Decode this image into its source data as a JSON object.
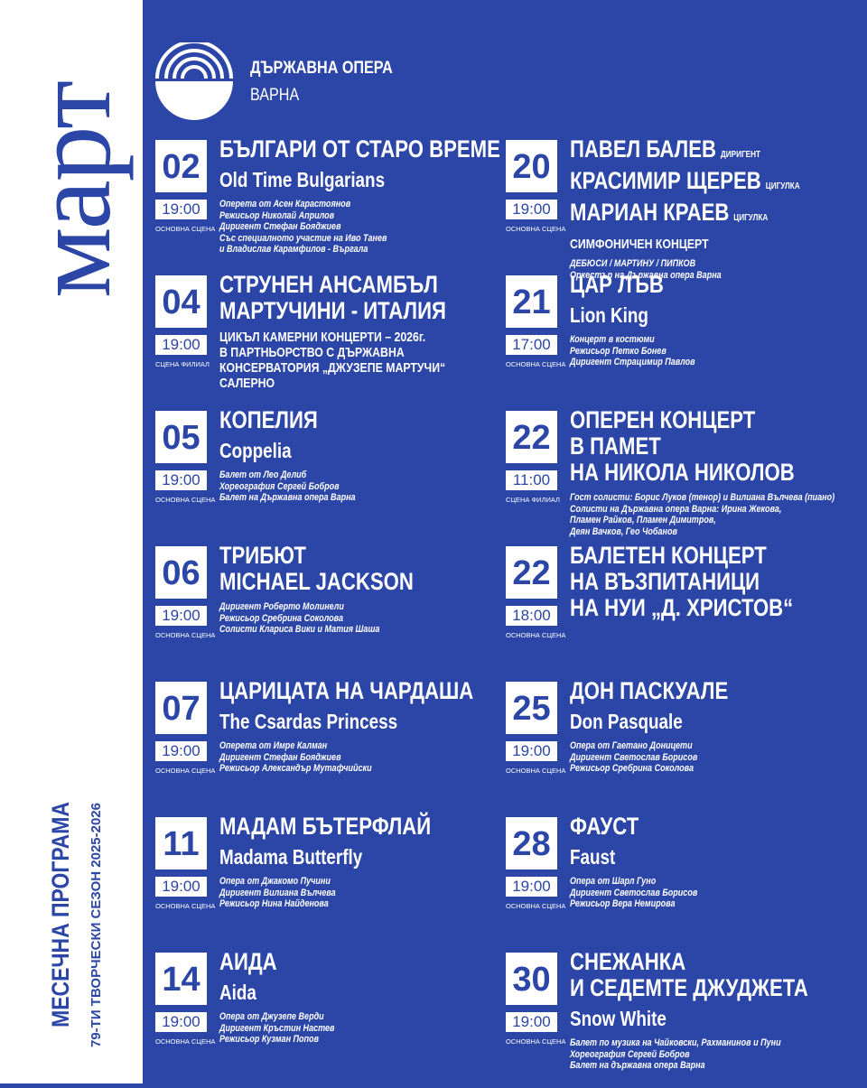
{
  "header": {
    "month": "март",
    "logo_line1": "ДЪРЖАВНА ОПЕРА",
    "logo_line2": "ВАРНА",
    "program": "МЕСЕЧНА ПРОГРАМА",
    "season": "79-ТИ ТВОРЧЕСКИ СЕЗОН 2025-2026"
  },
  "columns": [
    [
      {
        "day": "02",
        "time": "19:00",
        "venue": "ОСНОВНА СЦЕНА",
        "title": [
          "БЪЛГАРИ ОТ СТАРО ВРЕМЕ"
        ],
        "subtitle": "Old Time Bulgarians",
        "details": [
          "Оперета от Асен Карастоянов",
          "Режисьор Николай Априлов",
          "Диригент Стефан Бояджиев",
          "Със специалното участие на Иво Танев",
          "и Владислав Карамфилов - Въргала"
        ]
      },
      {
        "day": "04",
        "time": "19:00",
        "venue": "СЦЕНА ФИЛИАЛ",
        "title": [
          "СТРУНЕН АНСАМБЪЛ",
          "МАРТУЧИНИ - ИТАЛИЯ"
        ],
        "note": [
          "ЦИКЪЛ КАМЕРНИ КОНЦЕРТИ – 2026г.",
          "В ПАРТНЬОРСТВО С ДЪРЖАВНА",
          "КОНСЕРВАТОРИЯ „ДЖУЗЕПЕ МАРТУЧИ“",
          "САЛЕРНО"
        ]
      },
      {
        "day": "05",
        "time": "19:00",
        "venue": "ОСНОВНА СЦЕНА",
        "title": [
          "КОПЕЛИЯ"
        ],
        "subtitle": "Coppelia",
        "details": [
          "Балет от Лео Делиб",
          "Хореография Сергей Бобров",
          "Балет на Държавна опера Варна"
        ]
      },
      {
        "day": "06",
        "time": "19:00",
        "venue": "ОСНОВНА СЦЕНА",
        "title": [
          "ТРИБЮТ",
          "MICHAEL JACKSON"
        ],
        "details": [
          "Диригент Роберто Молинели",
          "Режисьор Сребрина Соколова",
          "Солисти Клариса Вики и Матия Шаша"
        ]
      },
      {
        "day": "07",
        "time": "19:00",
        "venue": "ОСНОВНА СЦЕНА",
        "title": [
          "ЦАРИЦАТА НА ЧАРДАША"
        ],
        "subtitle": "The Csardas Princess",
        "details": [
          "Оперета от Имре Калман",
          "Диригент Стефан Бояджиев",
          "Режисьор Александър Мутафчийски"
        ]
      },
      {
        "day": "11",
        "time": "19:00",
        "venue": "ОСНОВНА СЦЕНА",
        "title": [
          "МАДАМ БЪТЕРФЛАЙ"
        ],
        "subtitle": "Madama Butterfly",
        "details": [
          "Опера от Джакомо Пучини",
          "Диригент Вилиана Вълчева",
          "Режисьор Нина Найденова"
        ]
      },
      {
        "day": "14",
        "time": "19:00",
        "venue": "ОСНОВНА СЦЕНА",
        "title": [
          "АИДА"
        ],
        "subtitle": "Aida",
        "details": [
          "Опера от Джузепе Верди",
          "Диригент Кръстин Настев",
          "Режисьор Кузман Попов"
        ]
      }
    ],
    [
      {
        "day": "20",
        "time": "19:00",
        "venue": "ОСНОВНА СЦЕНА",
        "title": [
          "ПАВЕЛ БАЛЕВ",
          "КРАСИМИР ЩЕРЕВ",
          "МАРИАН КРАЕВ"
        ],
        "roles": [
          "ДИРИГЕНТ",
          "ЦИГУЛКА",
          "ЦИГУЛКА"
        ],
        "note": [
          "СИМФОНИЧЕН КОНЦЕРТ"
        ],
        "details": [
          "ДЕБЮСИ / МАРТИНУ / ПИПКОВ",
          "Оркестър на Държавна опера Варна"
        ]
      },
      {
        "day": "21",
        "time": "17:00",
        "venue": "ОСНОВНА СЦЕНА",
        "title": [
          "ЦАР ЛЪВ"
        ],
        "subtitle": "Lion King",
        "details": [
          "Концерт в костюми",
          "Режисьор Петко Бонев",
          "Диригент Страцимир Павлов"
        ]
      },
      {
        "day": "22",
        "time": "11:00",
        "venue": "СЦЕНА ФИЛИАЛ",
        "title": [
          "ОПЕРЕН КОНЦЕРТ",
          "В ПАМЕТ",
          "НА НИКОЛА НИКОЛОВ"
        ],
        "details": [
          "Гост солисти: Борис Луков (тенор) и Вилиана Вълчева (пиано)",
          "Солисти на Държавна опера Варна: Ирина Жекова,",
          "Пламен Райков, Пламен Димитров,",
          "Деян Вачков, Гео Чобанов"
        ]
      },
      {
        "day": "22",
        "time": "18:00",
        "venue": "ОСНОВНА СЦЕНА",
        "title": [
          "БАЛЕТЕН КОНЦЕРТ",
          "НА ВЪЗПИТАНИЦИ",
          "НА НУИ „Д. ХРИСТОВ“"
        ]
      },
      {
        "day": "25",
        "time": "19:00",
        "venue": "ОСНОВНА СЦЕНА",
        "title": [
          "ДОН ПАСКУАЛЕ"
        ],
        "subtitle": "Don Pasquale",
        "details": [
          "Опера от Гаетано Доницети",
          "Диригент Светослав Борисов",
          "Режисьор Сребрина Соколова"
        ]
      },
      {
        "day": "28",
        "time": "19:00",
        "venue": "ОСНОВНА СЦЕНА",
        "title": [
          "ФАУСТ"
        ],
        "subtitle": "Faust",
        "details": [
          "Опера от Шарл Гуно",
          "Диригент Светослав Борисов",
          "Режисьор Вера Немирова"
        ]
      },
      {
        "day": "30",
        "time": "19:00",
        "venue": "ОСНОВНА СЦЕНА",
        "title": [
          "СНЕЖАНКА",
          "И СЕДЕМТЕ ДЖУДЖЕТА"
        ],
        "subtitle": "Snow White",
        "details": [
          "Балет по музика на Чайковски, Рахманинов и Пуни",
          "Хореография Сергей Бобров",
          "Балет на държавна опера Варна"
        ]
      }
    ]
  ]
}
